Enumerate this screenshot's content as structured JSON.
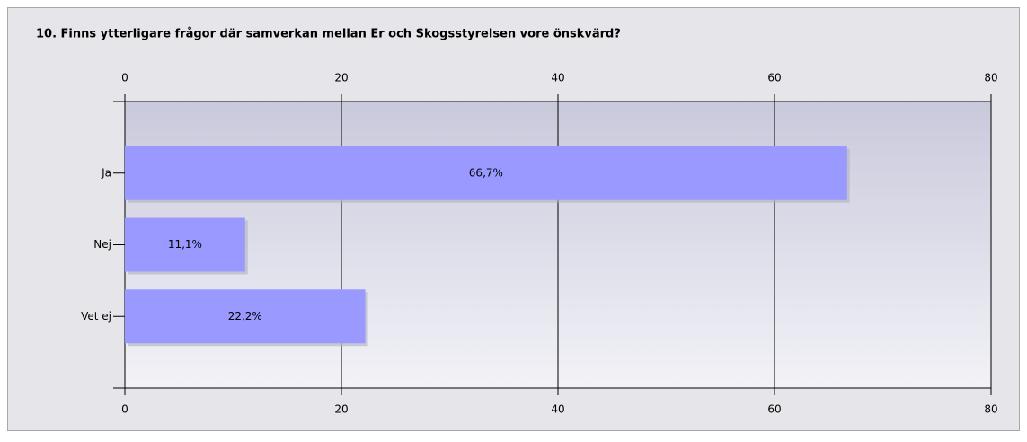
{
  "chart_data": {
    "type": "hbar",
    "title": "10. Finns ytterligare frågor där samverkan mellan Er och Skogsstyrelsen vore önskvärd?",
    "categories": [
      "Ja",
      "Nej",
      "Vet ej"
    ],
    "values": [
      66.7,
      11.1,
      22.2
    ],
    "value_labels": [
      "66,7%",
      "11,1%",
      "22,2%"
    ],
    "color": "#9999ff",
    "xlim": [
      0,
      80
    ],
    "xticks": [
      0,
      20,
      40,
      60,
      80
    ],
    "grid": true
  }
}
